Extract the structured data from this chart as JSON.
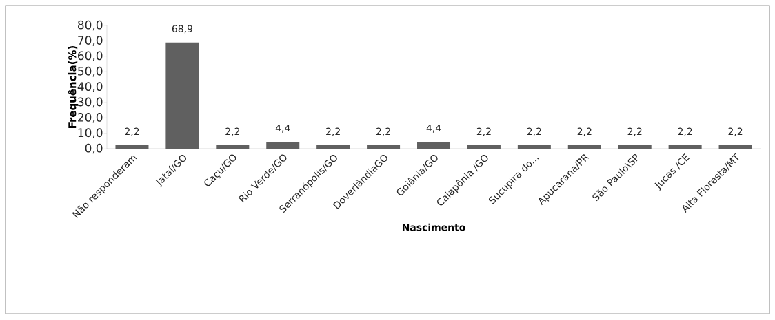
{
  "chart_data": {
    "type": "bar",
    "xlabel": "Nascimento",
    "ylabel": "Frequência(%)",
    "categories": [
      "Não responderam",
      "Jataí/GO",
      "Caçu/GO",
      "Rio Verde/GO",
      "Serranópolis/GO",
      "DoverlândiaGO",
      "Goiânia/GO",
      "Caiapônia /GO",
      "Sucupira do...",
      "Apucarana/PR",
      "São Paulo\\SP",
      "Jucas /CE",
      "Alta Floresta/MT"
    ],
    "values": [
      2.2,
      68.9,
      2.2,
      4.4,
      2.2,
      2.2,
      4.4,
      2.2,
      2.2,
      2.2,
      2.2,
      2.2,
      2.2
    ],
    "value_labels": [
      "2,2",
      "68,9",
      "2,2",
      "4,4",
      "2,2",
      "2,2",
      "4,4",
      "2,2",
      "2,2",
      "2,2",
      "2,2",
      "2,2",
      "2,2"
    ],
    "color": "#606060",
    "ylim": [
      0,
      80
    ],
    "yticks": [
      {
        "value": 0,
        "label": "0,0"
      },
      {
        "value": 10,
        "label": "10,0"
      },
      {
        "value": 20,
        "label": "20,0"
      },
      {
        "value": 30,
        "label": "30,0"
      },
      {
        "value": 40,
        "label": "40,0"
      },
      {
        "value": 50,
        "label": "50,0"
      },
      {
        "value": 60,
        "label": "60,0"
      },
      {
        "value": 70,
        "label": "70,0"
      },
      {
        "value": 80,
        "label": "80,0"
      }
    ],
    "tick_labels": "xy"
  }
}
